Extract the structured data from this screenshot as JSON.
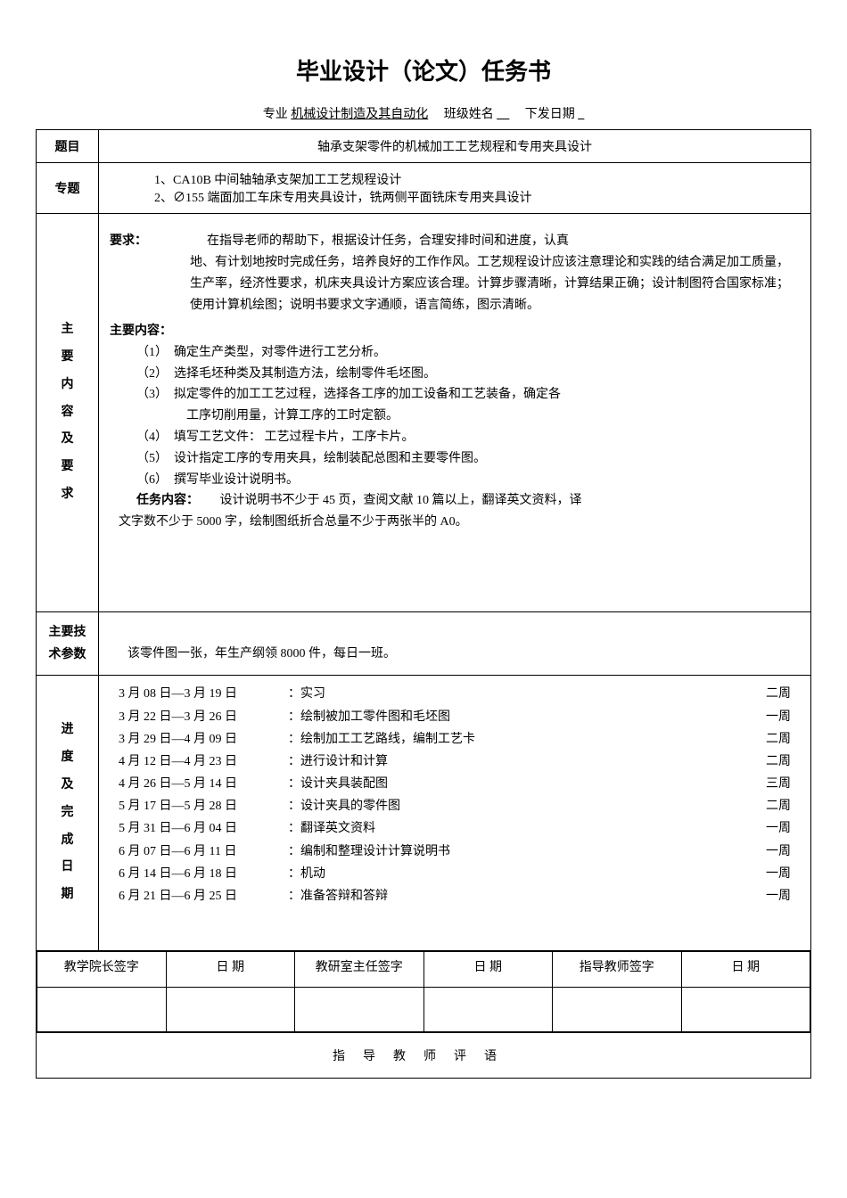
{
  "title": "毕业设计（论文）任务书",
  "header": {
    "major_label": "专业",
    "major_value": "机械设计制造及其自动化",
    "class_label": "班级姓名",
    "class_value": "__",
    "date_label": "下发日期",
    "date_value": "_"
  },
  "topic": {
    "label": "题目",
    "value": "轴承支架零件的机械加工工艺规程和专用夹具设计"
  },
  "subtopic": {
    "label": "专题",
    "line1": "1、CA10B 中间轴轴承支架加工工艺规程设计",
    "line2": "2、∅155 端面加工车床专用夹具设计，铣两侧平面铣床专用夹具设计"
  },
  "requirements": {
    "label": "主要内容及要求",
    "req_heading": "要求：",
    "req_text": "在指导老师的帮助下，根据设计任务，合理安排时间和进度，认真地、有计划地按时完成任务，培养良好的工作作风。工艺规程设计应该注意理论和实践的结合满足加工质量，生产率，经济性要求，机床夹具设计方案应该合理。计算步骤清晰，计算结果正确；设计制图符合国家标准；使用计算机绘图；说明书要求文字通顺，语言简练，图示清晰。",
    "content_heading": "主要内容：",
    "items": [
      {
        "num": "（1）",
        "text": "确定生产类型，对零件进行工艺分析。"
      },
      {
        "num": "（2）",
        "text": "选择毛坯种类及其制造方法，绘制零件毛坯图。"
      },
      {
        "num": "（3）",
        "text": "拟定零件的加工工艺过程，选择各工序的加工设备和工艺装备，确定各工序切削用量，计算工序的工时定额。"
      },
      {
        "num": "（4）",
        "text": "填写工艺文件：  工艺过程卡片，工序卡片。"
      },
      {
        "num": "（5）",
        "text": "设计指定工序的专用夹具，绘制装配总图和主要零件图。"
      },
      {
        "num": "（6）",
        "text": "撰写毕业设计说明书。"
      }
    ],
    "task_heading": "任务内容：",
    "task_text": "设计说明书不少于 45 页，查阅文献 10 篇以上，翻译英文资料，译文字数不少于 5000 字，绘制图纸折合总量不少于两张半的 A0。"
  },
  "parameters": {
    "label": "主要技术参数",
    "text": "该零件图一张，年生产纲领 8000 件，每日一班。"
  },
  "schedule": {
    "label": "进度及完成日期",
    "items": [
      {
        "date": "3 月 08 日—3 月 19 日",
        "task": "：实习",
        "duration": "二周"
      },
      {
        "date": "3 月 22 日—3 月 26 日",
        "task": "：绘制被加工零件图和毛坯图",
        "duration": "一周"
      },
      {
        "date": "3 月 29 日—4 月  09 日",
        "task": "：绘制加工工艺路线，编制工艺卡",
        "duration": "二周"
      },
      {
        "date": "4 月 12 日—4 月 23 日",
        "task": "：进行设计和计算",
        "duration": "二周"
      },
      {
        "date": "4 月 26 日—5 月 14 日",
        "task": "：设计夹具装配图",
        "duration": "三周"
      },
      {
        "date": "5 月 17 日—5 月 28 日",
        "task": "：设计夹具的零件图",
        "duration": "二周"
      },
      {
        "date": "5 月 31 日—6 月 04 日",
        "task": "：翻译英文资料",
        "duration": "一周"
      },
      {
        "date": "6 月 07 日—6 月 11 日",
        "task": "：编制和整理设计计算说明书",
        "duration": "一周"
      },
      {
        "date": "6 月 14 日—6 月 18 日",
        "task": "：机动",
        "duration": "一周"
      },
      {
        "date": "6 月 21 日—6 月 25 日",
        "task": "：准备答辩和答辩",
        "duration": "一周"
      }
    ]
  },
  "signatures": {
    "dean": "教学院长签字",
    "date1": "日  期",
    "office": "教研室主任签字",
    "date2": "日  期",
    "advisor": "指导教师签字",
    "date3": "日  期"
  },
  "comment_title": "指导教师评语"
}
